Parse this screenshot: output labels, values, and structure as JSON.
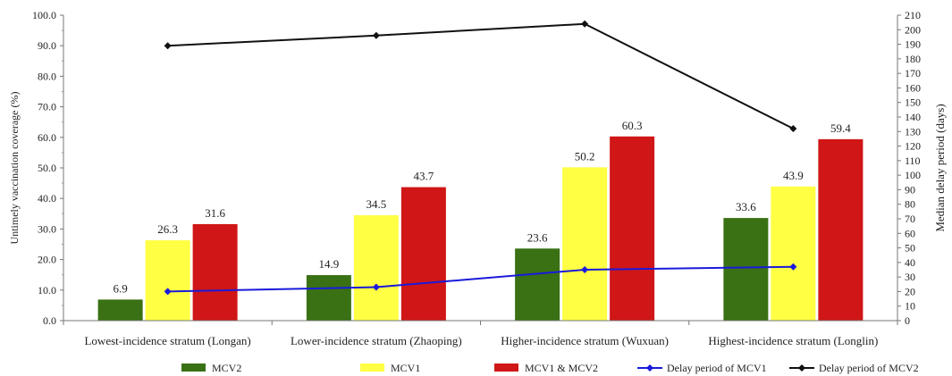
{
  "chart_data": {
    "type": "bar",
    "categories": [
      "Lowest-incidence stratum (Longan)",
      "Lower-incidence stratum (Zhaoping)",
      "Higher-incidence stratum (Wuxuan)",
      "Highest-incidence stratum (Longlin)"
    ],
    "bar_series": [
      {
        "name": "MCV2",
        "color": "#3a7114",
        "values": [
          6.9,
          14.9,
          23.6,
          33.6
        ],
        "labels": [
          "6.9",
          "14.9",
          "23.6",
          "33.6"
        ]
      },
      {
        "name": "MCV1",
        "color": "#ffff44",
        "values": [
          26.3,
          34.5,
          50.2,
          43.9
        ],
        "labels": [
          "26.3",
          "34.5",
          "50.2",
          "43.9"
        ]
      },
      {
        "name": "MCV1 & MCV2",
        "color": "#d01616",
        "values": [
          31.6,
          43.7,
          60.3,
          59.4
        ],
        "labels": [
          "31.6",
          "43.7",
          "60.3",
          "59.4"
        ]
      }
    ],
    "line_series": [
      {
        "name": "Delay period of MCV1",
        "color": "#1a1adb",
        "axis": "right",
        "values": [
          20,
          23,
          35,
          37
        ]
      },
      {
        "name": "Delay period of MCV2",
        "color": "#111111",
        "axis": "right",
        "values": [
          189,
          196,
          204,
          132
        ]
      }
    ],
    "ylabel": "Untimely vaccination coverage (%)",
    "ylabel_right": "Median delay period (days)",
    "ylim": [
      0,
      100
    ],
    "ylim_right": [
      0,
      210
    ],
    "y_ticks": [
      "0.0",
      "10.0",
      "20.0",
      "30.0",
      "40.0",
      "50.0",
      "60.0",
      "70.0",
      "80.0",
      "90.0",
      "100.0"
    ],
    "y_right_ticks": [
      "0",
      "10",
      "20",
      "30",
      "40",
      "50",
      "60",
      "70",
      "80",
      "90",
      "100",
      "110",
      "120",
      "130",
      "140",
      "150",
      "160",
      "170",
      "180",
      "190",
      "200",
      "210"
    ],
    "grid": false,
    "legend_position": "bottom"
  }
}
